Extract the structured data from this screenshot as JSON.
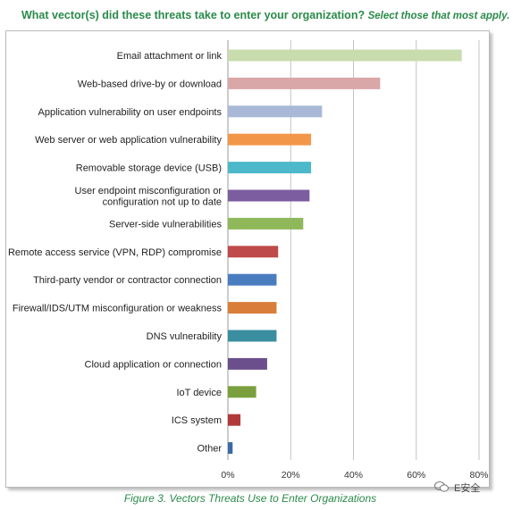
{
  "title": {
    "main": "What vector(s) did these threats take to enter your organization?",
    "sub": "Select those that most apply."
  },
  "caption": "Figure 3. Vectors Threats Use to Enter Organizations",
  "watermark": "E安全",
  "chart_data": {
    "type": "bar",
    "orientation": "horizontal",
    "xlim": [
      0,
      80
    ],
    "xticks": [
      "0%",
      "20%",
      "40%",
      "60%",
      "80%"
    ],
    "grid": true,
    "categories": [
      "Email attachment or link",
      "Web-based drive-by or download",
      "Application vulnerability on user endpoints",
      "Web server or web application vulnerability",
      "Removable storage device (USB)",
      "User endpoint misconfiguration or configuration not up to date",
      "Server-side vulnerabilities",
      "Remote access service (VPN, RDP) compromise",
      "Third-party vendor or contractor connection",
      "Firewall/IDS/UTM misconfiguration or weakness",
      "DNS vulnerability",
      "Cloud application or connection",
      "IoT device",
      "ICS system",
      "Other"
    ],
    "label_lines": [
      [
        "Email attachment or link"
      ],
      [
        "Web-based drive-by or download"
      ],
      [
        "Application vulnerability on user endpoints"
      ],
      [
        "Web server or web application vulnerability"
      ],
      [
        "Removable storage device (USB)"
      ],
      [
        "User endpoint misconfiguration or",
        "configuration not up to date"
      ],
      [
        "Server-side vulnerabilities"
      ],
      [
        "Remote access service (VPN, RDP) compromise"
      ],
      [
        "Third-party vendor or contractor connection"
      ],
      [
        "Firewall/IDS/UTM misconfiguration or weakness"
      ],
      [
        "DNS vulnerability"
      ],
      [
        "Cloud application or connection"
      ],
      [
        "IoT device"
      ],
      [
        "ICS system"
      ],
      [
        "Other"
      ]
    ],
    "values": [
      74.5,
      48.5,
      30.0,
      26.5,
      26.5,
      26.0,
      24.0,
      16.0,
      15.5,
      15.5,
      15.5,
      12.5,
      9.0,
      4.0,
      1.5
    ],
    "colors": [
      "#c9dcae",
      "#d9a7a7",
      "#a9b8d6",
      "#f2974a",
      "#4cb8c9",
      "#7b5da0",
      "#8fb85a",
      "#bf4a4a",
      "#4a7cc0",
      "#d97e3a",
      "#3a8ea0",
      "#6b4f8c",
      "#7aa03e",
      "#b03a3a",
      "#3a6aa8"
    ]
  }
}
